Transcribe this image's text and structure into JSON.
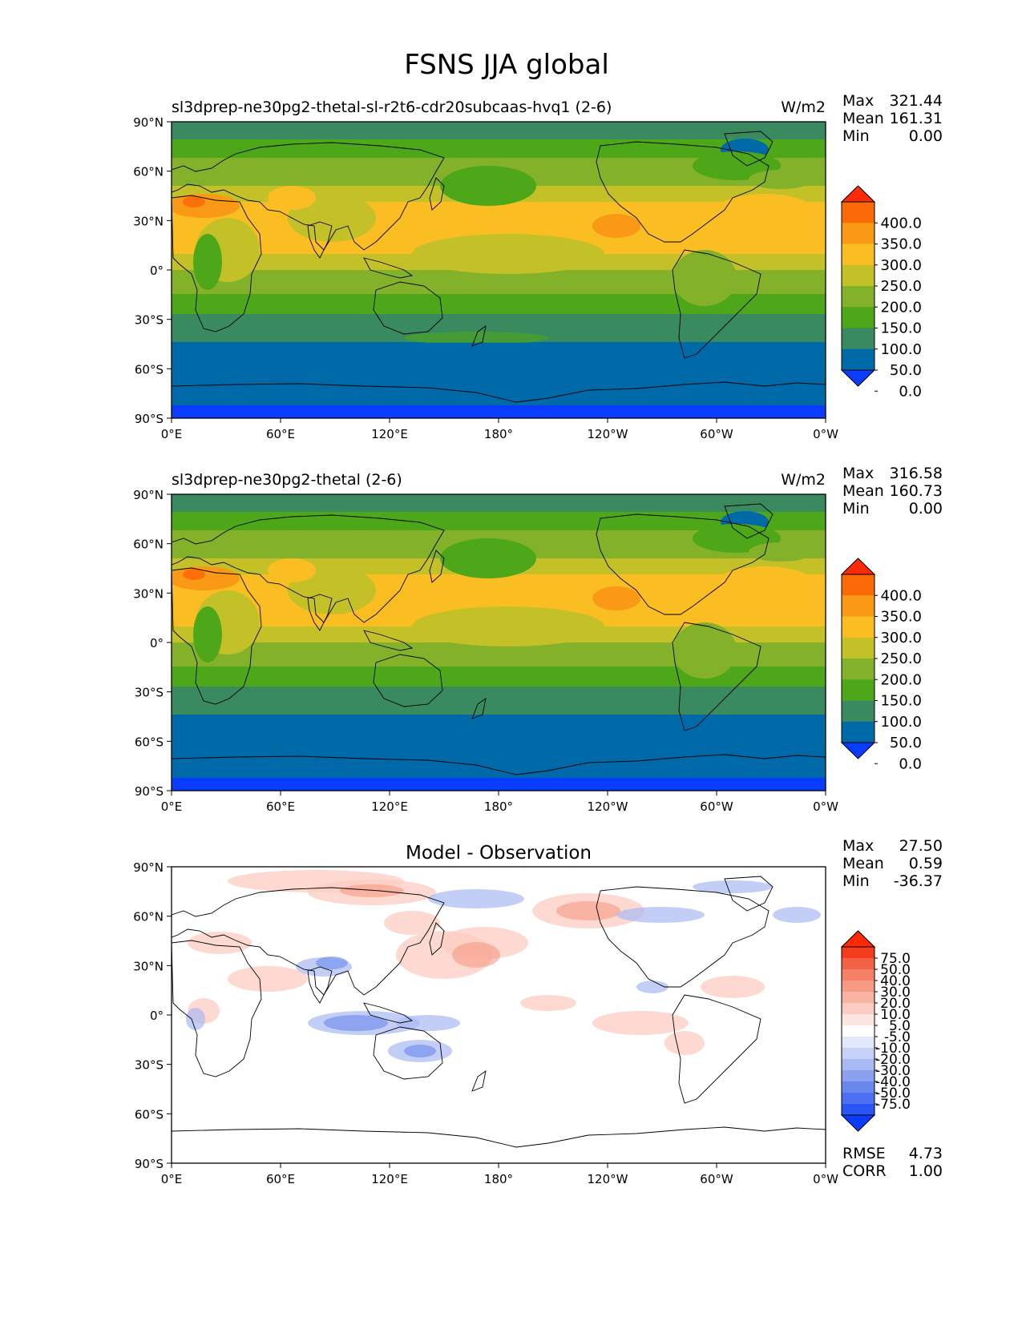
{
  "figure_title": "FSNS JJA global",
  "lat_ticks": [
    "90°N",
    "60°N",
    "30°N",
    "0°",
    "30°S",
    "60°S",
    "90°S"
  ],
  "lon_ticks": [
    "0°E",
    "60°E",
    "120°E",
    "180°",
    "120°W",
    "60°W",
    "0°W"
  ],
  "colors": {
    "fill_bands": [
      "#0a3cff",
      "#006aa8",
      "#3a8a5f",
      "#4ea619",
      "#84b12a",
      "#c4c128",
      "#fbbe22",
      "#fa9916",
      "#fc6a08",
      "#ff2b06"
    ],
    "diff_bands": [
      "#0a3cff",
      "#2a55f5",
      "#4a6ff0",
      "#6a88ec",
      "#8ba1ef",
      "#a9b9f3",
      "#c6d1f8",
      "#e2e8fc",
      "#ffffff",
      "#fde6e1",
      "#fcccc2",
      "#f9b3a3",
      "#f79a84",
      "#f58066",
      "#f46245",
      "#f43c1c",
      "#ff2b06"
    ],
    "land_outline": "#000000"
  },
  "panels": [
    {
      "title": "sl3dprep-ne30pg2-thetal-sl-r2t6-cdr20subcaas-hvq1 (2-6)",
      "units": "W/m2",
      "stats": [
        {
          "label": "Max",
          "value": "321.44"
        },
        {
          "label": "Mean",
          "value": "161.31"
        },
        {
          "label": "Min",
          "value": "0.00"
        }
      ],
      "colorbar_labels": [
        "400.0",
        "350.0",
        "300.0",
        "250.0",
        "200.0",
        "150.0",
        "100.0",
        "50.0",
        "0.0"
      ]
    },
    {
      "title": "sl3dprep-ne30pg2-thetal (2-6)",
      "units": "W/m2",
      "stats": [
        {
          "label": "Max",
          "value": "316.58"
        },
        {
          "label": "Mean",
          "value": "160.73"
        },
        {
          "label": "Min",
          "value": "0.00"
        }
      ],
      "colorbar_labels": [
        "400.0",
        "350.0",
        "300.0",
        "250.0",
        "200.0",
        "150.0",
        "100.0",
        "50.0",
        "0.0"
      ]
    },
    {
      "title": "Model - Observation",
      "units": "",
      "stats": [
        {
          "label": "Max",
          "value": "27.50"
        },
        {
          "label": "Mean",
          "value": "0.59"
        },
        {
          "label": "Min",
          "value": "-36.37"
        }
      ],
      "colorbar_labels": [
        "75.0",
        "50.0",
        "40.0",
        "30.0",
        "20.0",
        "10.0",
        "5.0",
        "-5.0",
        "-10.0",
        "-20.0",
        "-30.0",
        "-40.0",
        "-50.0",
        "-75.0"
      ],
      "metrics": [
        {
          "label": "RMSE",
          "value": "4.73"
        },
        {
          "label": "CORR",
          "value": "1.00"
        }
      ]
    }
  ]
}
